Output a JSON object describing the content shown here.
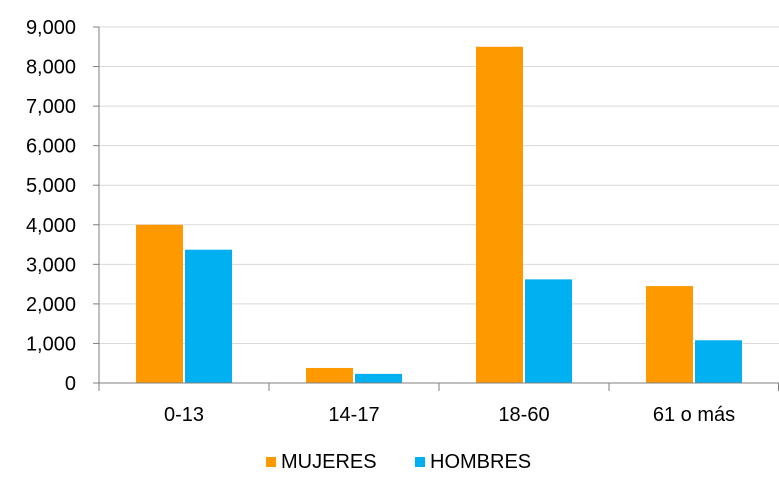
{
  "chart_data": {
    "type": "bar",
    "title": "",
    "xlabel": "",
    "ylabel": "",
    "categories": [
      "0-13",
      "14-17",
      "18-60",
      "61 o más"
    ],
    "series": [
      {
        "name": "MUJERES",
        "color": "#FF9900",
        "values": [
          4000,
          380,
          8500,
          2450
        ]
      },
      {
        "name": "HOMBRES",
        "color": "#00B0F0",
        "values": [
          3370,
          230,
          2620,
          1080
        ]
      }
    ],
    "ylim": [
      0,
      9000
    ],
    "yticks": [
      "0",
      "1,000",
      "2,000",
      "3,000",
      "4,000",
      "5,000",
      "6,000",
      "7,000",
      "8,000",
      "9,000"
    ],
    "grid": true,
    "gridline_color": "#D9D9D9",
    "axis_color": "#7F7F7F",
    "legend_position": "bottom"
  }
}
